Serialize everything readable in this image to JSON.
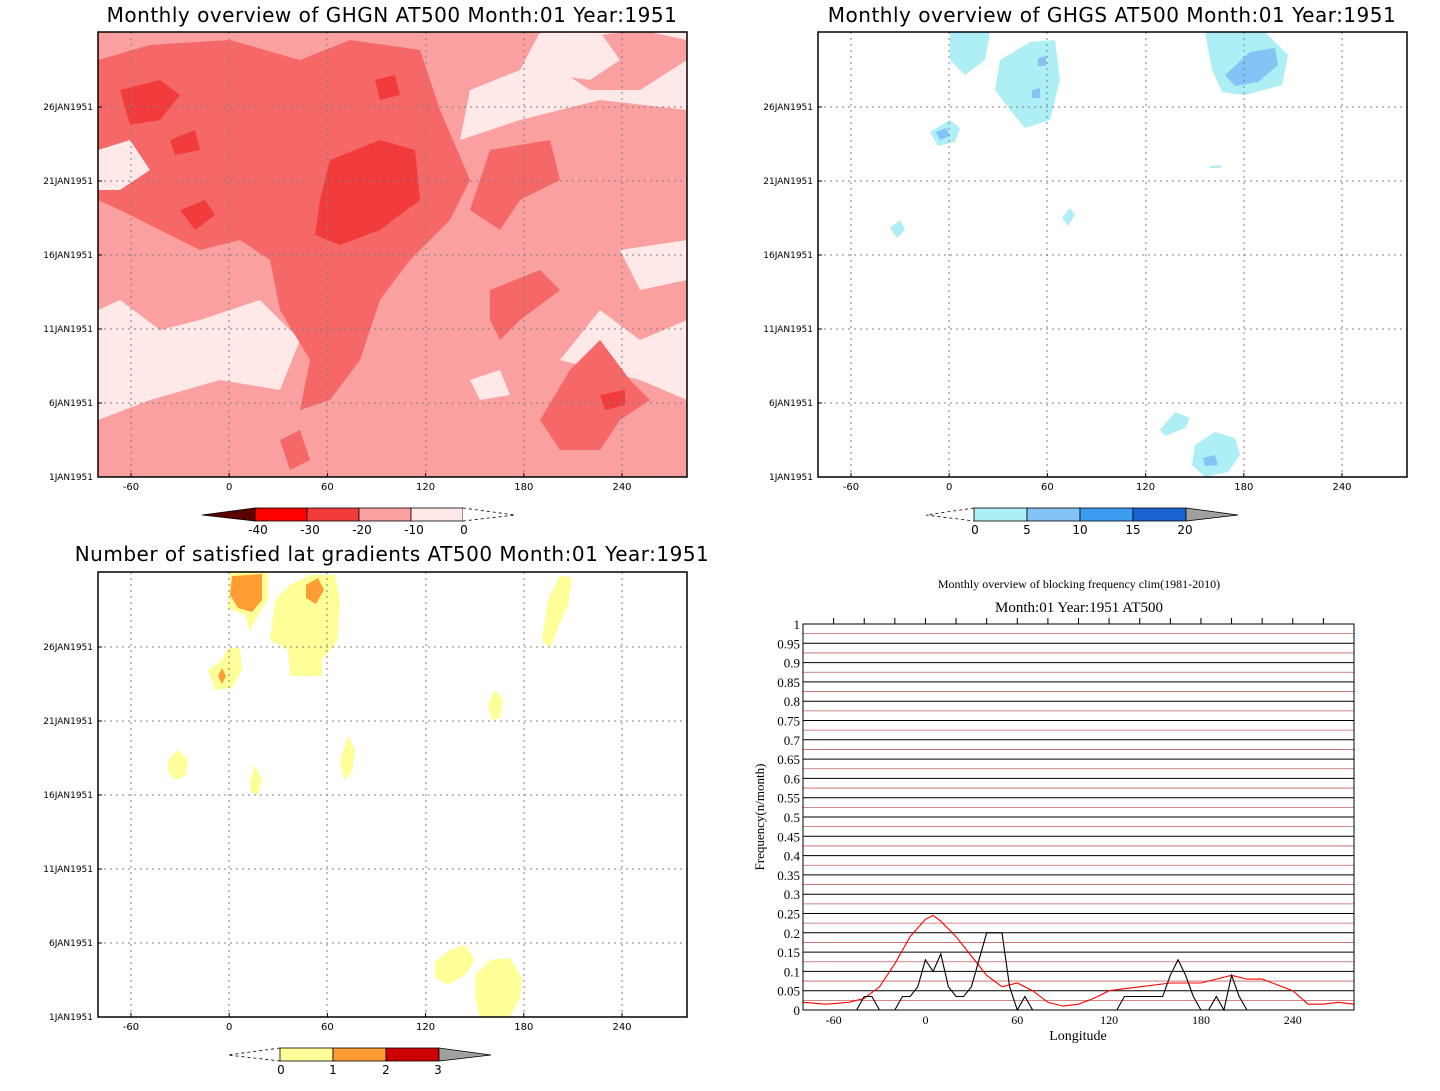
{
  "panels": {
    "ghgn": {
      "title": "Monthly overview of GHGN AT500 Month:01 Year:1951",
      "colorbar": {
        "labels": [
          "-40",
          "-30",
          "-20",
          "-10",
          "0"
        ],
        "colors": [
          "#5a0000",
          "#ff0000",
          "#f23c3c",
          "#f66767",
          "#fba0a0",
          "#ffe8e8"
        ]
      }
    },
    "ghgs": {
      "title": "Monthly overview of GHGS AT500 Month:01 Year:1951",
      "colorbar": {
        "labels": [
          "0",
          "5",
          "10",
          "15",
          "20"
        ],
        "colors": [
          "#aeeef5",
          "#84c3f5",
          "#3c9cf0",
          "#1964d2",
          "#a0a0a0"
        ]
      }
    },
    "lat": {
      "title": "Number of satisfied lat gradients AT500 Month:01 Year:1951",
      "colorbar": {
        "labels": [
          "0",
          "1",
          "2",
          "3"
        ],
        "colors": [
          "#ffff9a",
          "#ff9c33",
          "#cc0000",
          "#a0a0a0"
        ]
      }
    },
    "blocking": {
      "title": "Monthly overview of blocking frequency clim(1981-2010)",
      "subtitle": "Month:01 Year:1951  AT500"
    }
  },
  "map_axes": {
    "xticks": [
      "-60",
      "0",
      "60",
      "120",
      "180",
      "240"
    ],
    "yticks": [
      "1JAN1951",
      "6JAN1951",
      "11JAN1951",
      "16JAN1951",
      "21JAN1951",
      "26JAN1951"
    ]
  },
  "chart_data": [
    {
      "type": "heatmap",
      "title": "Monthly overview of GHGN AT500 Month:01 Year:1951",
      "x_range": [
        -60,
        240
      ],
      "y_range": [
        "1JAN1951",
        "31JAN1951"
      ],
      "levels": [
        -40,
        -30,
        -20,
        -10,
        0
      ]
    },
    {
      "type": "heatmap",
      "title": "Monthly overview of GHGS AT500 Month:01 Year:1951",
      "x_range": [
        -60,
        240
      ],
      "y_range": [
        "1JAN1951",
        "31JAN1951"
      ],
      "levels": [
        0,
        5,
        10,
        15,
        20
      ]
    },
    {
      "type": "heatmap",
      "title": "Number of satisfied lat gradients AT500 Month:01 Year:1951",
      "x_range": [
        -60,
        240
      ],
      "y_range": [
        "1JAN1951",
        "31JAN1951"
      ],
      "levels": [
        0,
        1,
        2,
        3
      ]
    },
    {
      "type": "line",
      "title": "Monthly overview of blocking frequency clim(1981-2010)",
      "subtitle": "Month:01 Year:1951  AT500",
      "xlabel": "Longitude",
      "ylabel": "Frequency(n/month)",
      "xlim": [
        -80,
        280
      ],
      "ylim": [
        0,
        1
      ],
      "xticks": [
        "-60",
        "0",
        "60",
        "120",
        "180",
        "240"
      ],
      "yticks": [
        "0",
        "0.05",
        "0.1",
        "0.15",
        "0.2",
        "0.25",
        "0.3",
        "0.35",
        "0.4",
        "0.45",
        "0.5",
        "0.55",
        "0.6",
        "0.65",
        "0.7",
        "0.75",
        "0.8",
        "0.85",
        "0.9",
        "0.95",
        "1"
      ],
      "series": [
        {
          "color": "#ff0000",
          "x": [
            -80,
            -65,
            -50,
            -40,
            -30,
            -20,
            -10,
            0,
            5,
            10,
            20,
            30,
            40,
            50,
            60,
            70,
            80,
            90,
            100,
            110,
            120,
            140,
            160,
            180,
            190,
            200,
            210,
            220,
            240,
            250,
            260,
            270,
            280
          ],
          "y": [
            0.02,
            0.015,
            0.02,
            0.03,
            0.06,
            0.12,
            0.19,
            0.235,
            0.245,
            0.23,
            0.19,
            0.14,
            0.09,
            0.06,
            0.07,
            0.05,
            0.02,
            0.01,
            0.015,
            0.03,
            0.05,
            0.06,
            0.07,
            0.07,
            0.08,
            0.09,
            0.08,
            0.08,
            0.05,
            0.015,
            0.015,
            0.02,
            0.015
          ]
        },
        {
          "color": "#000000",
          "x": [
            -80,
            -45,
            -40,
            -35,
            -30,
            -20,
            -15,
            -10,
            -5,
            0,
            5,
            10,
            15,
            20,
            25,
            30,
            35,
            40,
            45,
            50,
            55,
            60,
            65,
            70,
            75,
            80,
            90,
            100,
            110,
            125,
            130,
            140,
            150,
            155,
            160,
            165,
            170,
            175,
            180,
            185,
            190,
            195,
            200,
            205,
            210,
            220,
            240,
            280
          ],
          "y": [
            0,
            0,
            0.035,
            0.035,
            0,
            0,
            0.035,
            0.035,
            0.06,
            0.13,
            0.1,
            0.145,
            0.06,
            0.035,
            0.035,
            0.06,
            0.13,
            0.2,
            0.2,
            0.2,
            0.06,
            0,
            0.035,
            0,
            0,
            0,
            0,
            0,
            0,
            0,
            0.035,
            0.035,
            0.035,
            0.035,
            0.09,
            0.13,
            0.09,
            0.035,
            0,
            0,
            0.035,
            0,
            0.09,
            0.035,
            0,
            0,
            0,
            0
          ]
        }
      ]
    }
  ]
}
